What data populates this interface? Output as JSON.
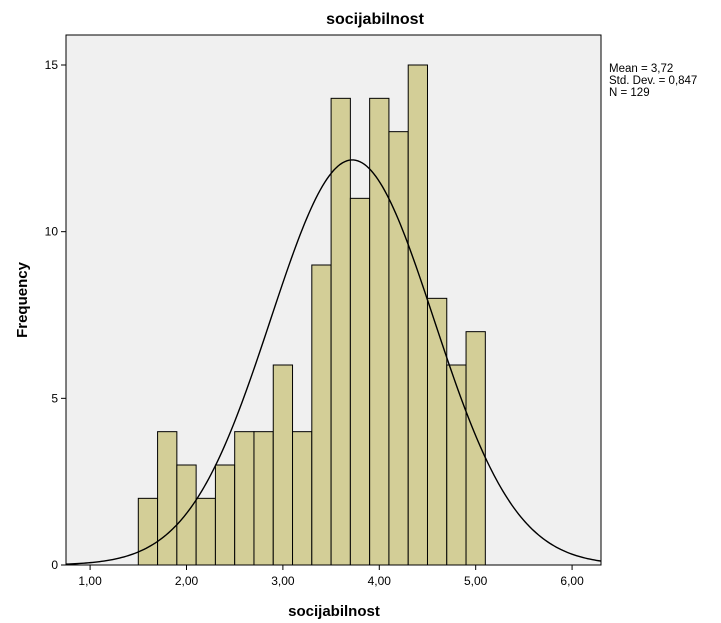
{
  "chart_data": {
    "type": "bar",
    "title": "socijabilnost",
    "xlabel": "socijabilnost",
    "ylabel": "Frequency",
    "bin_width": 0.2,
    "bins": [
      {
        "start": 1.5,
        "count": 2
      },
      {
        "start": 1.7,
        "count": 4
      },
      {
        "start": 1.9,
        "count": 3
      },
      {
        "start": 2.1,
        "count": 2
      },
      {
        "start": 2.3,
        "count": 3
      },
      {
        "start": 2.5,
        "count": 4
      },
      {
        "start": 2.7,
        "count": 4
      },
      {
        "start": 2.9,
        "count": 6
      },
      {
        "start": 3.1,
        "count": 4
      },
      {
        "start": 3.3,
        "count": 9
      },
      {
        "start": 3.5,
        "count": 14
      },
      {
        "start": 3.7,
        "count": 11
      },
      {
        "start": 3.9,
        "count": 14
      },
      {
        "start": 4.1,
        "count": 13
      },
      {
        "start": 4.3,
        "count": 15
      },
      {
        "start": 4.5,
        "count": 8
      },
      {
        "start": 4.7,
        "count": 6
      },
      {
        "start": 4.9,
        "count": 7
      }
    ],
    "xlim": [
      0.75,
      6.3
    ],
    "ylim": [
      0,
      15.9
    ],
    "x_ticks": [
      1,
      2,
      3,
      4,
      5,
      6
    ],
    "x_tick_labels": [
      "1,00",
      "2,00",
      "3,00",
      "4,00",
      "5,00",
      "6,00"
    ],
    "y_ticks": [
      0,
      5,
      10,
      15
    ],
    "y_tick_labels": [
      "0",
      "5",
      "10",
      "15"
    ],
    "normal_curve": {
      "mean": 3.72,
      "sd": 0.847,
      "n": 129
    },
    "stats_labels": [
      "Mean = 3,72",
      "Std. Dev. = 0,847",
      "N = 129"
    ],
    "grid": false,
    "legend": "right",
    "colors": {
      "plot_background": "#f0f0f0",
      "bar_fill": "#d3ce97",
      "bar_stroke": "#000000",
      "curve": "#000000"
    }
  }
}
